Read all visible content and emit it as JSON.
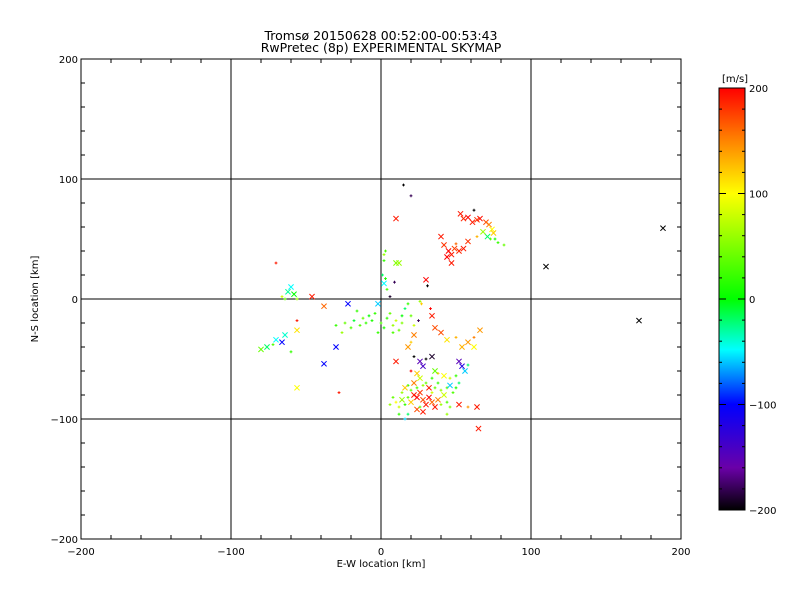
{
  "chart_data": {
    "type": "scatter",
    "title": "Tromsø 20150628 00:52:00-00:53:43",
    "subtitle": "RwPretec (8p) EXPERIMENTAL SKYMAP",
    "xlabel": "E-W location [km]",
    "ylabel": "N-S location [km]",
    "xlim": [
      -200,
      200
    ],
    "ylim": [
      -200,
      200
    ],
    "xticks": [
      -200,
      -100,
      0,
      100,
      200
    ],
    "yticks": [
      -200,
      -100,
      0,
      100,
      200
    ],
    "xtick_labels": [
      "−200",
      "−100",
      "0",
      "100",
      "200"
    ],
    "ytick_labels": [
      "−200",
      "−100",
      "0",
      "100",
      "200"
    ],
    "grid": true,
    "colorbar": {
      "label": "[m/s]",
      "range": [
        -200,
        200
      ],
      "ticks": [
        200,
        100,
        0,
        -100,
        -200
      ],
      "tick_labels": [
        "200",
        "100",
        "0",
        "−100",
        "−200"
      ],
      "colormap": "rainbow (black-purple-blue-cyan-green-yellow-red)"
    },
    "marker_legend": "x = cross markers, + = small plus markers; color = Doppler velocity",
    "points": [
      {
        "x": 15,
        "y": 95,
        "v": -200,
        "m": "+"
      },
      {
        "x": 20,
        "y": 86,
        "v": -180,
        "m": "+"
      },
      {
        "x": 10,
        "y": 67,
        "v": 190,
        "m": "x"
      },
      {
        "x": 53,
        "y": 71,
        "v": 190,
        "m": "x"
      },
      {
        "x": 55,
        "y": 67,
        "v": 185,
        "m": "x"
      },
      {
        "x": 58,
        "y": 68,
        "v": 200,
        "m": "x"
      },
      {
        "x": 61,
        "y": 64,
        "v": 190,
        "m": "x"
      },
      {
        "x": 64,
        "y": 66,
        "v": 180,
        "m": "x"
      },
      {
        "x": 66,
        "y": 67,
        "v": 195,
        "m": "x"
      },
      {
        "x": 62,
        "y": 74,
        "v": -200,
        "m": "+"
      },
      {
        "x": 70,
        "y": 64,
        "v": 170,
        "m": "x"
      },
      {
        "x": 72,
        "y": 62,
        "v": 150,
        "m": "x"
      },
      {
        "x": 74,
        "y": 58,
        "v": 100,
        "m": "x"
      },
      {
        "x": 75,
        "y": 55,
        "v": 120,
        "m": "x"
      },
      {
        "x": 73,
        "y": 50,
        "v": 40,
        "m": "+"
      },
      {
        "x": 71,
        "y": 52,
        "v": -20,
        "m": "x"
      },
      {
        "x": 76,
        "y": 50,
        "v": 10,
        "m": "+"
      },
      {
        "x": 78,
        "y": 47,
        "v": 20,
        "m": "+"
      },
      {
        "x": 82,
        "y": 45,
        "v": 40,
        "m": "+"
      },
      {
        "x": 68,
        "y": 56,
        "v": 60,
        "m": "x"
      },
      {
        "x": 64,
        "y": 52,
        "v": 130,
        "m": "+"
      },
      {
        "x": 40,
        "y": 52,
        "v": 190,
        "m": "x"
      },
      {
        "x": 42,
        "y": 45,
        "v": 180,
        "m": "x"
      },
      {
        "x": 45,
        "y": 40,
        "v": 200,
        "m": "x"
      },
      {
        "x": 47,
        "y": 37,
        "v": 190,
        "m": "x"
      },
      {
        "x": 49,
        "y": 42,
        "v": 175,
        "m": "x"
      },
      {
        "x": 52,
        "y": 40,
        "v": 185,
        "m": "x"
      },
      {
        "x": 44,
        "y": 35,
        "v": 200,
        "m": "x"
      },
      {
        "x": 55,
        "y": 42,
        "v": 190,
        "m": "x"
      },
      {
        "x": 58,
        "y": 48,
        "v": 180,
        "m": "x"
      },
      {
        "x": 50,
        "y": 46,
        "v": 160,
        "m": "+"
      },
      {
        "x": 47,
        "y": 30,
        "v": 190,
        "m": "x"
      },
      {
        "x": 30,
        "y": 16,
        "v": 200,
        "m": "x"
      },
      {
        "x": 31,
        "y": 11,
        "v": -200,
        "m": "+"
      },
      {
        "x": 10,
        "y": 30,
        "v": 50,
        "m": "x"
      },
      {
        "x": 12,
        "y": 30,
        "v": 60,
        "m": "x"
      },
      {
        "x": 3,
        "y": 40,
        "v": 30,
        "m": "+"
      },
      {
        "x": 2,
        "y": 37,
        "v": 60,
        "m": "+"
      },
      {
        "x": 2,
        "y": 32,
        "v": 20,
        "m": "+"
      },
      {
        "x": 1,
        "y": 20,
        "v": -20,
        "m": "+"
      },
      {
        "x": 3,
        "y": 17,
        "v": 10,
        "m": "+"
      },
      {
        "x": 2,
        "y": 13,
        "v": -50,
        "m": "x"
      },
      {
        "x": 4,
        "y": 8,
        "v": 30,
        "m": "+"
      },
      {
        "x": 9,
        "y": 14,
        "v": -180,
        "m": "+"
      },
      {
        "x": 6,
        "y": 2,
        "v": -190,
        "m": "+"
      },
      {
        "x": -2,
        "y": -4,
        "v": -60,
        "m": "x"
      },
      {
        "x": -4,
        "y": -12,
        "v": 20,
        "m": "+"
      },
      {
        "x": -6,
        "y": -18,
        "v": 10,
        "m": "+"
      },
      {
        "x": -8,
        "y": -14,
        "v": 0,
        "m": "+"
      },
      {
        "x": -10,
        "y": -20,
        "v": 20,
        "m": "+"
      },
      {
        "x": -12,
        "y": -16,
        "v": 40,
        "m": "+"
      },
      {
        "x": -14,
        "y": -22,
        "v": 30,
        "m": "+"
      },
      {
        "x": -16,
        "y": -10,
        "v": 20,
        "m": "+"
      },
      {
        "x": -18,
        "y": -18,
        "v": -10,
        "m": "+"
      },
      {
        "x": -20,
        "y": -24,
        "v": 30,
        "m": "+"
      },
      {
        "x": -22,
        "y": -4,
        "v": -100,
        "m": "x"
      },
      {
        "x": -24,
        "y": -20,
        "v": 40,
        "m": "+"
      },
      {
        "x": -26,
        "y": -28,
        "v": 60,
        "m": "+"
      },
      {
        "x": -30,
        "y": -22,
        "v": 20,
        "m": "+"
      },
      {
        "x": 0,
        "y": -20,
        "v": 30,
        "m": "+"
      },
      {
        "x": 2,
        "y": -24,
        "v": 10,
        "m": "+"
      },
      {
        "x": 4,
        "y": -16,
        "v": 20,
        "m": "+"
      },
      {
        "x": 6,
        "y": -12,
        "v": 40,
        "m": "+"
      },
      {
        "x": 8,
        "y": -22,
        "v": 60,
        "m": "+"
      },
      {
        "x": 10,
        "y": -18,
        "v": 80,
        "m": "+"
      },
      {
        "x": -2,
        "y": -28,
        "v": 20,
        "m": "+"
      },
      {
        "x": 12,
        "y": -26,
        "v": 40,
        "m": "+"
      },
      {
        "x": 14,
        "y": -14,
        "v": 0,
        "m": "+"
      },
      {
        "x": 16,
        "y": -8,
        "v": -20,
        "m": "+"
      },
      {
        "x": 18,
        "y": -4,
        "v": 20,
        "m": "+"
      },
      {
        "x": 20,
        "y": -14,
        "v": 40,
        "m": "+"
      },
      {
        "x": 22,
        "y": -22,
        "v": 80,
        "m": "+"
      },
      {
        "x": 14,
        "y": -20,
        "v": 50,
        "m": "+"
      },
      {
        "x": 8,
        "y": -28,
        "v": 30,
        "m": "+"
      },
      {
        "x": 26,
        "y": -2,
        "v": 60,
        "m": "+"
      },
      {
        "x": 27,
        "y": -4,
        "v": 120,
        "m": "+"
      },
      {
        "x": 33,
        "y": -8,
        "v": 200,
        "m": "+"
      },
      {
        "x": 34,
        "y": -14,
        "v": 190,
        "m": "x"
      },
      {
        "x": 25,
        "y": -18,
        "v": -180,
        "m": "+"
      },
      {
        "x": 22,
        "y": -30,
        "v": 150,
        "m": "x"
      },
      {
        "x": 20,
        "y": -36,
        "v": 120,
        "m": "+"
      },
      {
        "x": 18,
        "y": -40,
        "v": 140,
        "m": "x"
      },
      {
        "x": 36,
        "y": -24,
        "v": 170,
        "m": "x"
      },
      {
        "x": 40,
        "y": -28,
        "v": 170,
        "m": "x"
      },
      {
        "x": 44,
        "y": -34,
        "v": 110,
        "m": "x"
      },
      {
        "x": 50,
        "y": -32,
        "v": 130,
        "m": "+"
      },
      {
        "x": 54,
        "y": -40,
        "v": 130,
        "m": "x"
      },
      {
        "x": 58,
        "y": -36,
        "v": 140,
        "m": "x"
      },
      {
        "x": 62,
        "y": -32,
        "v": 150,
        "m": "+"
      },
      {
        "x": 66,
        "y": -26,
        "v": 140,
        "m": "x"
      },
      {
        "x": 62,
        "y": -40,
        "v": 100,
        "m": "x"
      },
      {
        "x": 34,
        "y": -48,
        "v": -190,
        "m": "x"
      },
      {
        "x": 30,
        "y": -50,
        "v": -200,
        "m": "+"
      },
      {
        "x": 26,
        "y": -52,
        "v": -150,
        "m": "x"
      },
      {
        "x": 28,
        "y": -56,
        "v": -140,
        "m": "x"
      },
      {
        "x": 22,
        "y": -48,
        "v": -200,
        "m": "+"
      },
      {
        "x": 24,
        "y": -62,
        "v": 120,
        "m": "x"
      },
      {
        "x": 10,
        "y": -52,
        "v": 190,
        "m": "x"
      },
      {
        "x": 20,
        "y": -60,
        "v": 200,
        "m": "+"
      },
      {
        "x": 52,
        "y": -52,
        "v": -150,
        "m": "x"
      },
      {
        "x": 54,
        "y": -56,
        "v": -120,
        "m": "x"
      },
      {
        "x": 56,
        "y": -60,
        "v": -60,
        "m": "x"
      },
      {
        "x": 58,
        "y": -55,
        "v": -20,
        "m": "+"
      },
      {
        "x": 50,
        "y": -64,
        "v": 20,
        "m": "+"
      },
      {
        "x": 46,
        "y": -66,
        "v": 80,
        "m": "+"
      },
      {
        "x": 42,
        "y": -64,
        "v": 100,
        "m": "x"
      },
      {
        "x": 38,
        "y": -62,
        "v": 120,
        "m": "+"
      },
      {
        "x": 36,
        "y": -60,
        "v": 40,
        "m": "x"
      },
      {
        "x": 34,
        "y": -66,
        "v": 20,
        "m": "+"
      },
      {
        "x": 30,
        "y": -70,
        "v": 40,
        "m": "+"
      },
      {
        "x": 28,
        "y": -72,
        "v": 60,
        "m": "+"
      },
      {
        "x": 26,
        "y": -66,
        "v": 80,
        "m": "x"
      },
      {
        "x": 24,
        "y": -74,
        "v": 30,
        "m": "+"
      },
      {
        "x": 22,
        "y": -70,
        "v": 150,
        "m": "x"
      },
      {
        "x": 20,
        "y": -76,
        "v": 40,
        "m": "+"
      },
      {
        "x": 18,
        "y": -72,
        "v": 20,
        "m": "+"
      },
      {
        "x": 16,
        "y": -74,
        "v": 120,
        "m": "x"
      },
      {
        "x": 14,
        "y": -78,
        "v": 60,
        "m": "+"
      },
      {
        "x": 32,
        "y": -74,
        "v": 190,
        "m": "x"
      },
      {
        "x": 34,
        "y": -78,
        "v": 80,
        "m": "+"
      },
      {
        "x": 36,
        "y": -74,
        "v": 40,
        "m": "+"
      },
      {
        "x": 38,
        "y": -70,
        "v": 20,
        "m": "+"
      },
      {
        "x": 40,
        "y": -76,
        "v": 60,
        "m": "+"
      },
      {
        "x": 42,
        "y": -80,
        "v": 80,
        "m": "x"
      },
      {
        "x": 44,
        "y": -74,
        "v": 40,
        "m": "+"
      },
      {
        "x": 46,
        "y": -72,
        "v": -60,
        "m": "x"
      },
      {
        "x": 48,
        "y": -78,
        "v": 30,
        "m": "+"
      },
      {
        "x": 50,
        "y": -74,
        "v": 10,
        "m": "+"
      },
      {
        "x": 52,
        "y": -70,
        "v": -20,
        "m": "+"
      },
      {
        "x": 22,
        "y": -80,
        "v": 190,
        "m": "x"
      },
      {
        "x": 24,
        "y": -82,
        "v": 200,
        "m": "x"
      },
      {
        "x": 26,
        "y": -78,
        "v": 180,
        "m": "x"
      },
      {
        "x": 28,
        "y": -84,
        "v": 170,
        "m": "x"
      },
      {
        "x": 30,
        "y": -88,
        "v": 190,
        "m": "x"
      },
      {
        "x": 32,
        "y": -82,
        "v": 200,
        "m": "x"
      },
      {
        "x": 34,
        "y": -86,
        "v": 160,
        "m": "x"
      },
      {
        "x": 36,
        "y": -90,
        "v": 190,
        "m": "x"
      },
      {
        "x": 38,
        "y": -84,
        "v": 150,
        "m": "x"
      },
      {
        "x": 40,
        "y": -88,
        "v": 60,
        "m": "+"
      },
      {
        "x": 20,
        "y": -86,
        "v": 120,
        "m": "x"
      },
      {
        "x": 18,
        "y": -82,
        "v": 40,
        "m": "+"
      },
      {
        "x": 16,
        "y": -88,
        "v": 20,
        "m": "+"
      },
      {
        "x": 14,
        "y": -84,
        "v": 60,
        "m": "x"
      },
      {
        "x": 12,
        "y": -90,
        "v": 80,
        "m": "+"
      },
      {
        "x": 10,
        "y": -86,
        "v": 100,
        "m": "+"
      },
      {
        "x": 8,
        "y": -82,
        "v": 40,
        "m": "+"
      },
      {
        "x": 6,
        "y": -88,
        "v": 60,
        "m": "+"
      },
      {
        "x": 24,
        "y": -92,
        "v": 170,
        "m": "x"
      },
      {
        "x": 26,
        "y": -90,
        "v": 40,
        "m": "+"
      },
      {
        "x": 28,
        "y": -94,
        "v": 190,
        "m": "x"
      },
      {
        "x": 18,
        "y": -96,
        "v": -20,
        "m": "+"
      },
      {
        "x": 16,
        "y": -100,
        "v": -60,
        "m": "+"
      },
      {
        "x": 12,
        "y": -96,
        "v": 20,
        "m": "+"
      },
      {
        "x": 44,
        "y": -86,
        "v": 30,
        "m": "+"
      },
      {
        "x": 46,
        "y": -90,
        "v": 50,
        "m": "+"
      },
      {
        "x": 52,
        "y": -88,
        "v": 190,
        "m": "x"
      },
      {
        "x": 58,
        "y": -90,
        "v": 140,
        "m": "+"
      },
      {
        "x": 64,
        "y": -90,
        "v": 190,
        "m": "x"
      },
      {
        "x": 65,
        "y": -108,
        "v": 190,
        "m": "x"
      },
      {
        "x": 44,
        "y": -96,
        "v": 60,
        "m": "+"
      },
      {
        "x": -70,
        "y": 30,
        "v": 190,
        "m": "+"
      },
      {
        "x": -60,
        "y": 10,
        "v": -50,
        "m": "x"
      },
      {
        "x": -62,
        "y": 6,
        "v": -30,
        "m": "x"
      },
      {
        "x": -58,
        "y": 4,
        "v": 0,
        "m": "x"
      },
      {
        "x": -56,
        "y": 0,
        "v": 60,
        "m": "+"
      },
      {
        "x": -64,
        "y": 0,
        "v": 40,
        "m": "+"
      },
      {
        "x": -66,
        "y": 2,
        "v": 80,
        "m": "+"
      },
      {
        "x": -46,
        "y": 2,
        "v": 190,
        "m": "x"
      },
      {
        "x": -38,
        "y": -6,
        "v": 160,
        "m": "x"
      },
      {
        "x": -56,
        "y": -18,
        "v": 190,
        "m": "+"
      },
      {
        "x": -56,
        "y": -26,
        "v": 110,
        "m": "x"
      },
      {
        "x": -64,
        "y": -30,
        "v": -40,
        "m": "x"
      },
      {
        "x": -70,
        "y": -34,
        "v": -50,
        "m": "x"
      },
      {
        "x": -66,
        "y": -36,
        "v": -100,
        "m": "x"
      },
      {
        "x": -72,
        "y": -38,
        "v": 30,
        "m": "+"
      },
      {
        "x": -76,
        "y": -40,
        "v": -20,
        "m": "x"
      },
      {
        "x": -80,
        "y": -42,
        "v": 40,
        "m": "x"
      },
      {
        "x": -60,
        "y": -44,
        "v": 20,
        "m": "+"
      },
      {
        "x": -30,
        "y": -40,
        "v": -100,
        "m": "x"
      },
      {
        "x": -38,
        "y": -54,
        "v": -100,
        "m": "x"
      },
      {
        "x": -56,
        "y": -74,
        "v": 100,
        "m": "x"
      },
      {
        "x": -28,
        "y": -78,
        "v": 190,
        "m": "+"
      },
      {
        "x": 110,
        "y": 27,
        "v": -200,
        "m": "x"
      },
      {
        "x": 172,
        "y": -18,
        "v": -200,
        "m": "x"
      },
      {
        "x": 188,
        "y": 59,
        "v": -200,
        "m": "x"
      }
    ]
  }
}
